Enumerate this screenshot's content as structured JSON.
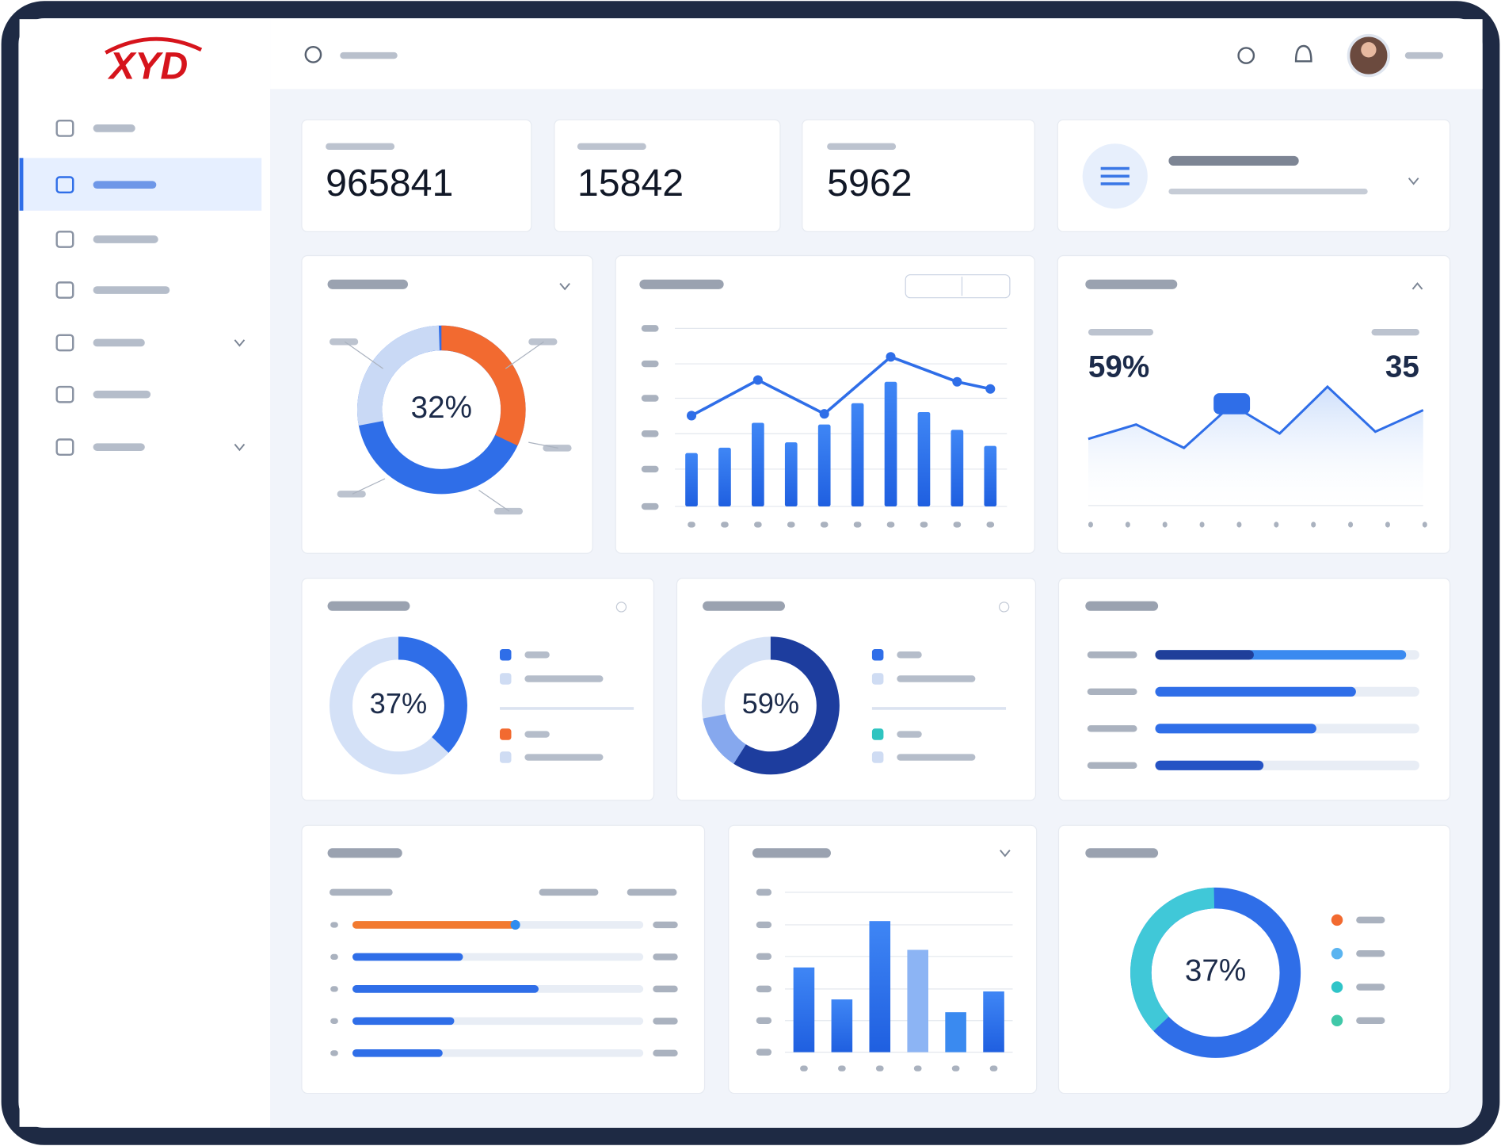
{
  "logo": "XYD",
  "stats": [
    965841,
    15842,
    5962
  ],
  "donut_main": {
    "label": "32%",
    "value": 32
  },
  "bar_chart": {
    "type": "bar",
    "ylim": [
      0,
      100
    ],
    "values": [
      30,
      33,
      47,
      36,
      46,
      58,
      70,
      53,
      43,
      34
    ],
    "line_x": [
      0,
      2,
      4,
      6,
      8,
      9
    ],
    "line_values": [
      51,
      71,
      52,
      84,
      70,
      66
    ]
  },
  "trend": {
    "percent": "59%",
    "count": 35,
    "ylim": [
      0,
      100
    ],
    "values": [
      37,
      45,
      32,
      56,
      40,
      66,
      41,
      53
    ]
  },
  "donuts": [
    {
      "label": "37%",
      "value": 37
    },
    {
      "label": "59%",
      "value": 59
    }
  ],
  "h_bars": {
    "values": [
      95,
      76,
      61,
      41
    ]
  },
  "progress": {
    "values": [
      56,
      38,
      64,
      35,
      31
    ]
  },
  "bar_chart_2": {
    "type": "bar",
    "ylim": [
      0,
      100
    ],
    "values": [
      53,
      33,
      82,
      64,
      25,
      38
    ]
  },
  "donut_cyan": {
    "label": "37%",
    "value": 37
  }
}
